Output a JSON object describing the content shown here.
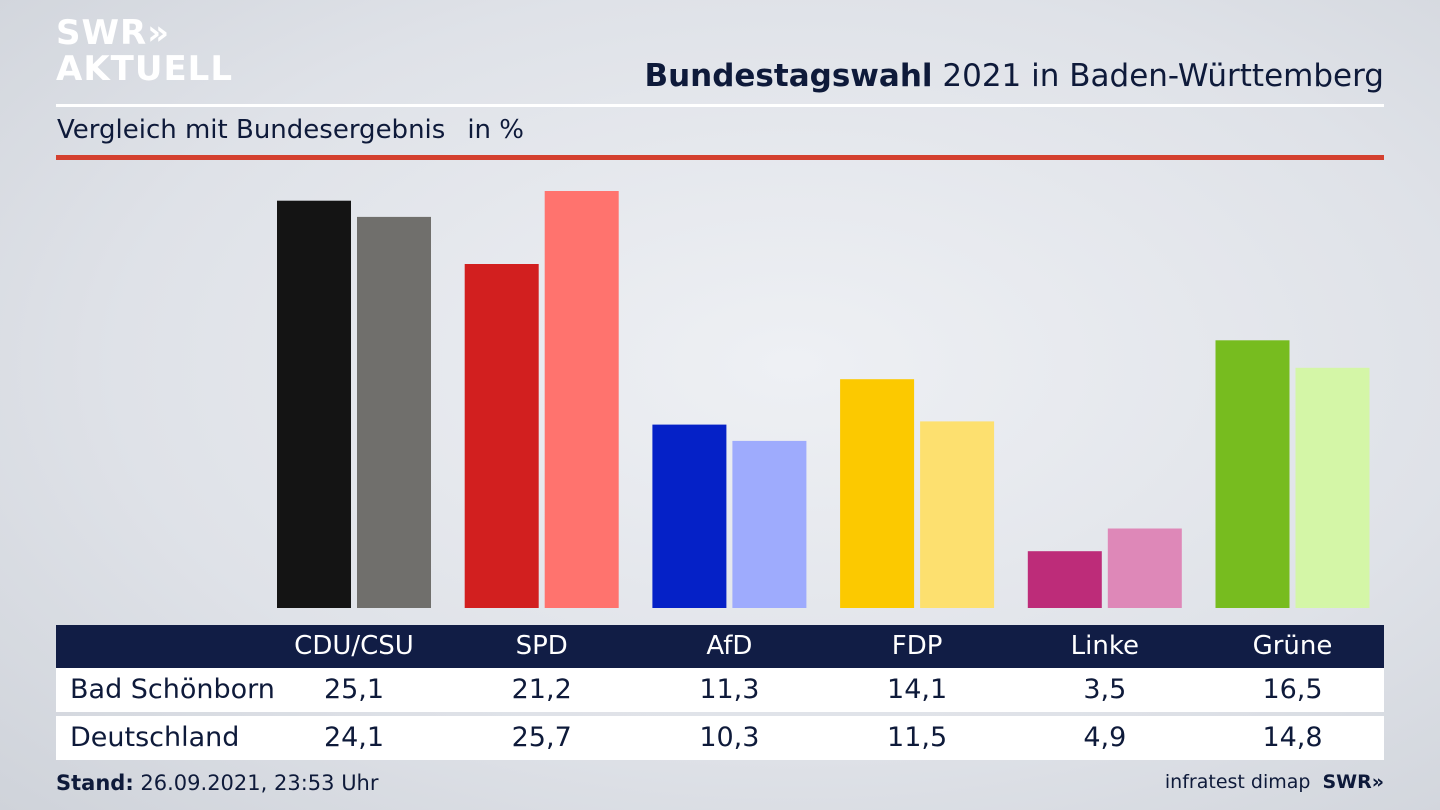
{
  "brand": {
    "line1": "SWR",
    "chevrons": "»",
    "line2": "AKTUELL"
  },
  "header": {
    "title_bold": "Bundestagswahl",
    "title_rest": "2021 in Baden-Württemberg",
    "subtitle": "Vergleich mit Bundesergebnis",
    "unit": "in %"
  },
  "chart_data": {
    "type": "bar",
    "categories": [
      "CDU/CSU",
      "SPD",
      "AfD",
      "FDP",
      "Linke",
      "Grüne"
    ],
    "series": [
      {
        "name": "Bad Schönborn",
        "values": [
          25.1,
          21.2,
          11.3,
          14.1,
          3.5,
          16.5
        ]
      },
      {
        "name": "Deutschland",
        "values": [
          24.1,
          25.7,
          10.3,
          11.5,
          4.9,
          14.8
        ]
      }
    ],
    "colors": {
      "Bad Schönborn": [
        "#141414",
        "#d21f1f",
        "#0521c7",
        "#fcc900",
        "#bd2c79",
        "#77bc1f"
      ],
      "Deutschland": [
        "#706f6c",
        "#ff736e",
        "#9eabfd",
        "#fde06f",
        "#de88b8",
        "#d4f6a7"
      ]
    },
    "ylim": [
      0,
      26.5
    ],
    "xlabel": "",
    "ylabel": ""
  },
  "table": {
    "rows": [
      {
        "label": "Bad Schönborn",
        "values": [
          "25,1",
          "21,2",
          "11,3",
          "14,1",
          "3,5",
          "16,5"
        ]
      },
      {
        "label": "Deutschland",
        "values": [
          "24,1",
          "25,7",
          "10,3",
          "11,5",
          "4,9",
          "14,8"
        ]
      }
    ]
  },
  "footer": {
    "stand_label": "Stand:",
    "stand_value": "26.09.2021, 23:53 Uhr",
    "source": "infratest dimap",
    "brand": "SWR»"
  }
}
